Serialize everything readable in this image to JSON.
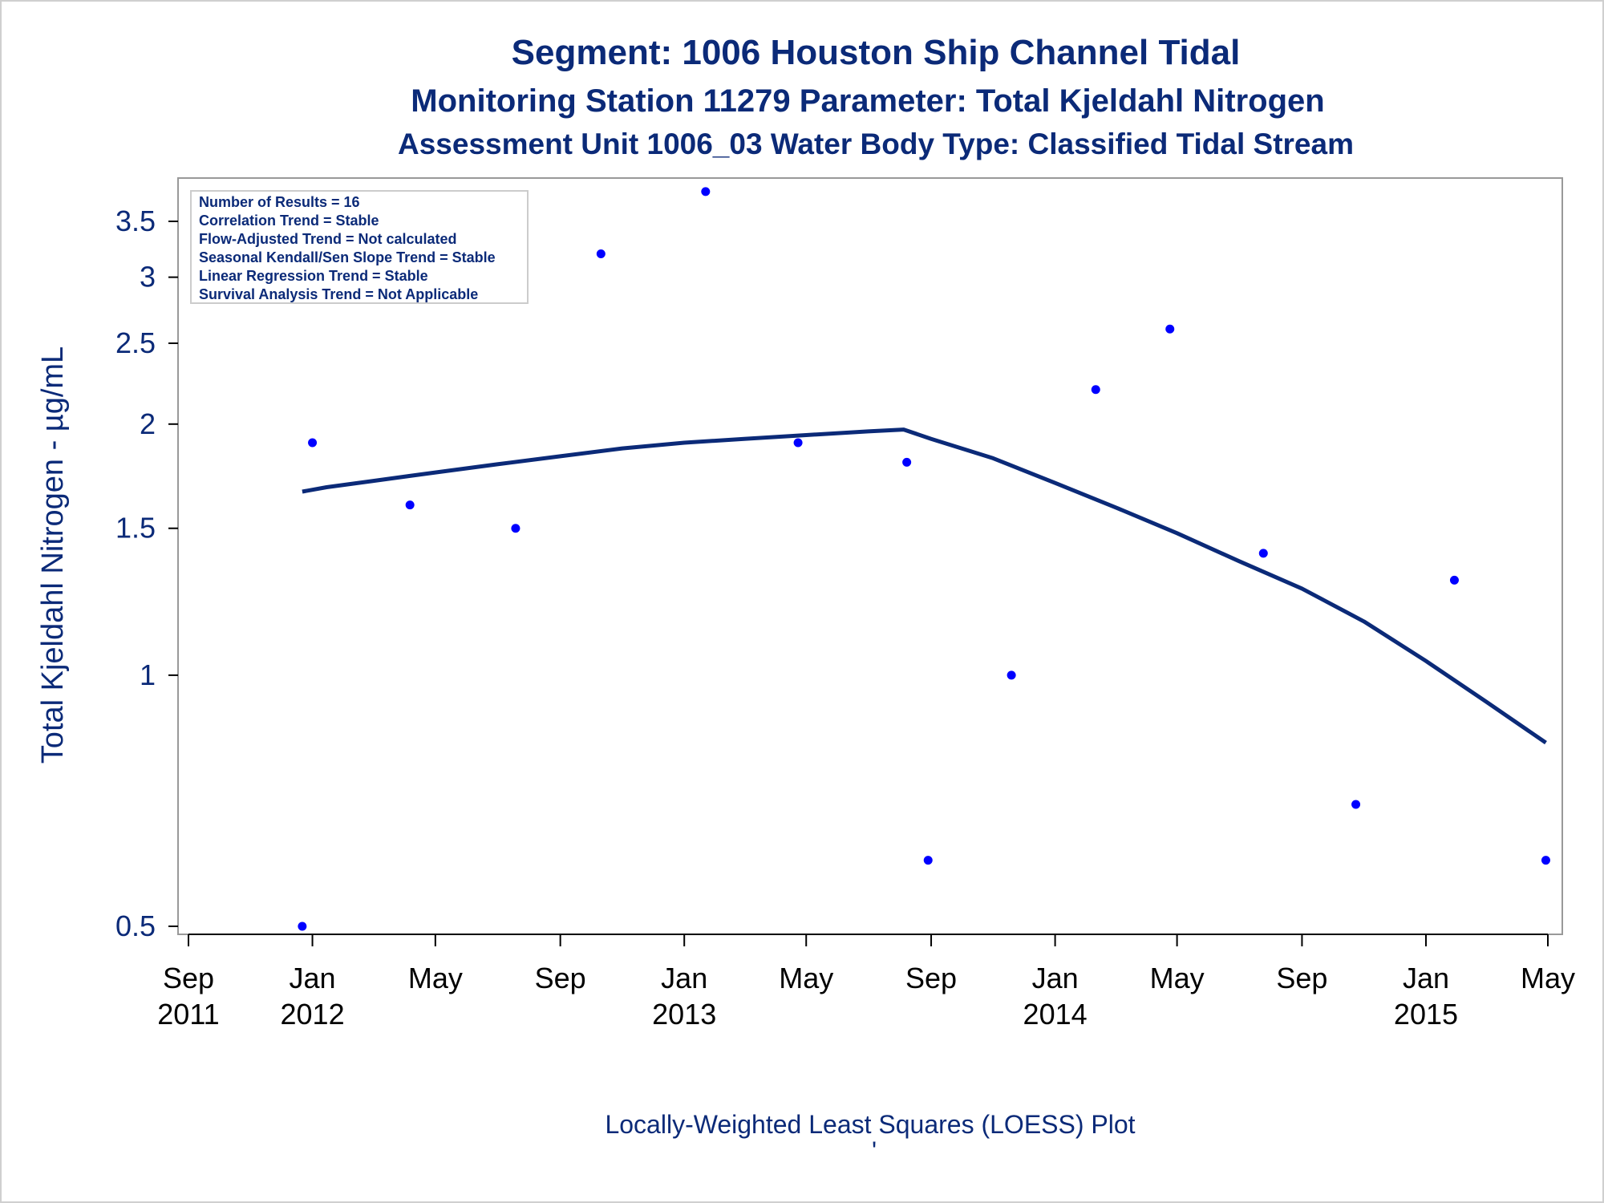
{
  "chart_data": {
    "type": "scatter",
    "title": "Segment: 1006  Houston Ship Channel Tidal",
    "subtitle": "Monitoring Station 11279 Parameter: Total Kjeldahl Nitrogen",
    "subtitle2": "Assessment Unit 1006_03   Water Body Type: Classified Tidal Stream",
    "ylabel": "Total Kjeldahl Nitrogen -  µg/mL",
    "footnote": "Locally-Weighted Least Squares (LOESS) Plot",
    "footnote_mark": "'",
    "yscale": "log",
    "yticks": [
      0.5,
      1,
      1.5,
      2,
      2.5,
      3,
      3.5
    ],
    "ytick_labels": [
      "0.5",
      "1",
      "1.5",
      "2",
      "2.5",
      "3",
      "3.5"
    ],
    "xlim": [
      "2011-09-01",
      "2015-05-01"
    ],
    "xticks": [
      {
        "date": "2011-09-01",
        "month": "Sep",
        "year": "2011"
      },
      {
        "date": "2012-01-01",
        "month": "Jan",
        "year": "2012"
      },
      {
        "date": "2012-05-01",
        "month": "May",
        "year": ""
      },
      {
        "date": "2012-09-01",
        "month": "Sep",
        "year": ""
      },
      {
        "date": "2013-01-01",
        "month": "Jan",
        "year": "2013"
      },
      {
        "date": "2013-05-01",
        "month": "May",
        "year": ""
      },
      {
        "date": "2013-09-01",
        "month": "Sep",
        "year": ""
      },
      {
        "date": "2014-01-01",
        "month": "Jan",
        "year": "2014"
      },
      {
        "date": "2014-05-01",
        "month": "May",
        "year": ""
      },
      {
        "date": "2014-09-01",
        "month": "Sep",
        "year": ""
      },
      {
        "date": "2015-01-01",
        "month": "Jan",
        "year": "2015"
      },
      {
        "date": "2015-05-01",
        "month": "May",
        "year": ""
      }
    ],
    "stats_box": [
      "Number of Results = 16",
      "Correlation Trend = Stable",
      "Flow-Adjusted Trend = Not calculated",
      "Seasonal Kendall/Sen Slope Trend = Stable",
      "Linear Regression Trend = Stable",
      "Survival Analysis Trend = Not Applicable"
    ],
    "points": [
      {
        "x": "2011-12-22",
        "y": 0.5
      },
      {
        "x": "2012-01-01",
        "y": 1.9
      },
      {
        "x": "2012-04-06",
        "y": 1.6
      },
      {
        "x": "2012-07-19",
        "y": 1.5
      },
      {
        "x": "2012-10-11",
        "y": 3.2
      },
      {
        "x": "2013-01-22",
        "y": 3.8
      },
      {
        "x": "2013-04-23",
        "y": 1.9
      },
      {
        "x": "2013-08-08",
        "y": 1.8
      },
      {
        "x": "2013-08-29",
        "y": 0.6
      },
      {
        "x": "2013-11-19",
        "y": 1.0
      },
      {
        "x": "2014-02-10",
        "y": 2.2
      },
      {
        "x": "2014-04-24",
        "y": 2.6
      },
      {
        "x": "2014-07-25",
        "y": 1.4
      },
      {
        "x": "2014-10-24",
        "y": 0.7
      },
      {
        "x": "2015-01-29",
        "y": 1.3
      },
      {
        "x": "2015-04-29",
        "y": 0.6
      }
    ],
    "loess": [
      {
        "x": "2011-12-22",
        "y": 1.66
      },
      {
        "x": "2012-01-15",
        "y": 1.68
      },
      {
        "x": "2012-03-01",
        "y": 1.71
      },
      {
        "x": "2012-05-01",
        "y": 1.75
      },
      {
        "x": "2012-07-01",
        "y": 1.79
      },
      {
        "x": "2012-09-01",
        "y": 1.83
      },
      {
        "x": "2012-11-01",
        "y": 1.87
      },
      {
        "x": "2013-01-01",
        "y": 1.9
      },
      {
        "x": "2013-03-01",
        "y": 1.92
      },
      {
        "x": "2013-05-01",
        "y": 1.94
      },
      {
        "x": "2013-07-01",
        "y": 1.96
      },
      {
        "x": "2013-08-05",
        "y": 1.97
      },
      {
        "x": "2013-09-01",
        "y": 1.92
      },
      {
        "x": "2013-11-01",
        "y": 1.82
      },
      {
        "x": "2014-01-01",
        "y": 1.7
      },
      {
        "x": "2014-03-01",
        "y": 1.59
      },
      {
        "x": "2014-05-01",
        "y": 1.48
      },
      {
        "x": "2014-07-01",
        "y": 1.37
      },
      {
        "x": "2014-09-01",
        "y": 1.27
      },
      {
        "x": "2014-11-01",
        "y": 1.16
      },
      {
        "x": "2015-01-01",
        "y": 1.04
      },
      {
        "x": "2015-03-01",
        "y": 0.93
      },
      {
        "x": "2015-04-29",
        "y": 0.83
      }
    ],
    "colors": {
      "point": "#0000ff",
      "line": "#0b2a78",
      "text": "#0b2a78",
      "frame": "#999999"
    },
    "grid": false,
    "stats_box_placement": "top-left"
  }
}
